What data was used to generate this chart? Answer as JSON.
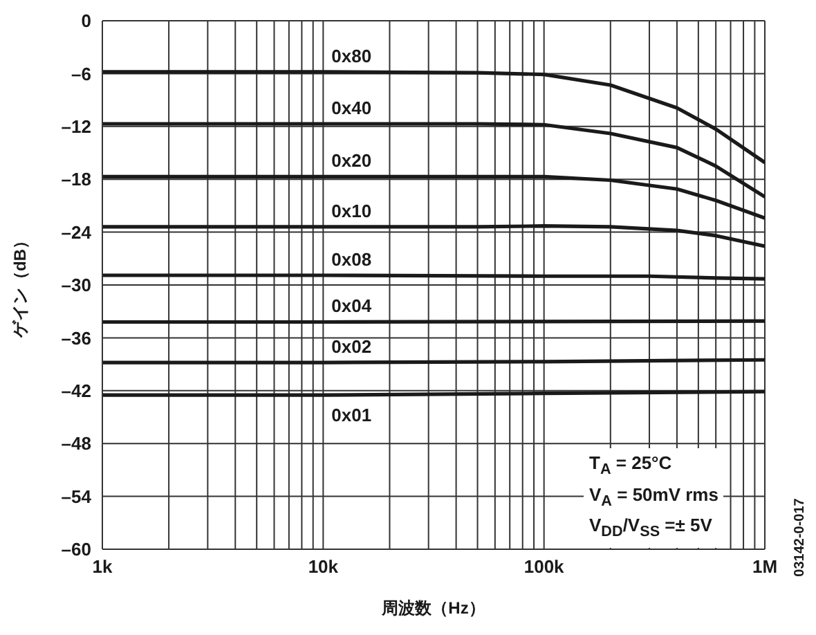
{
  "chart_data": {
    "type": "line",
    "xlabel": "周波数（Hz）",
    "ylabel": "ゲイン（dB）",
    "log": "x",
    "grid": true,
    "line_style": "solid",
    "xlim": [
      1000,
      1000000
    ],
    "xticks": [
      {
        "value": 1000,
        "label": "1k"
      },
      {
        "value": 2000,
        "label": null
      },
      {
        "value": 3000,
        "label": null
      },
      {
        "value": 4000,
        "label": null
      },
      {
        "value": 5000,
        "label": null
      },
      {
        "value": 6000,
        "label": null
      },
      {
        "value": 7000,
        "label": null
      },
      {
        "value": 8000,
        "label": null
      },
      {
        "value": 9000,
        "label": null
      },
      {
        "value": 10000,
        "label": "10k"
      },
      {
        "value": 20000,
        "label": null
      },
      {
        "value": 30000,
        "label": null
      },
      {
        "value": 40000,
        "label": null
      },
      {
        "value": 50000,
        "label": null
      },
      {
        "value": 60000,
        "label": null
      },
      {
        "value": 70000,
        "label": null
      },
      {
        "value": 80000,
        "label": null
      },
      {
        "value": 90000,
        "label": null
      },
      {
        "value": 100000,
        "label": "100k"
      },
      {
        "value": 200000,
        "label": null
      },
      {
        "value": 300000,
        "label": null
      },
      {
        "value": 400000,
        "label": null
      },
      {
        "value": 500000,
        "label": null
      },
      {
        "value": 600000,
        "label": null
      },
      {
        "value": 700000,
        "label": null
      },
      {
        "value": 800000,
        "label": null
      },
      {
        "value": 900000,
        "label": null
      },
      {
        "value": 1000000,
        "label": "1M"
      }
    ],
    "ylim": [
      -60,
      0
    ],
    "yticks": [
      {
        "value": -60,
        "label": "–60"
      },
      {
        "value": -54,
        "label": "–54"
      },
      {
        "value": -48,
        "label": "–48"
      },
      {
        "value": -42,
        "label": "–42"
      },
      {
        "value": -36,
        "label": "–36"
      },
      {
        "value": -30,
        "label": "–30"
      },
      {
        "value": -24,
        "label": "–24"
      },
      {
        "value": -18,
        "label": "–18"
      },
      {
        "value": -12,
        "label": "–12"
      },
      {
        "value": -6,
        "label": "–6"
      },
      0
    ],
    "series": [
      {
        "name": "0x80",
        "color": "#1a1a1a",
        "x": [
          1000,
          10000,
          50000,
          100000,
          200000,
          400000,
          600000,
          1000000
        ],
        "values": [
          -5.8,
          -5.8,
          -5.9,
          -6.1,
          -7.3,
          -9.9,
          -12.3,
          -16.1
        ]
      },
      {
        "name": "0x40",
        "color": "#1a1a1a",
        "x": [
          1000,
          10000,
          50000,
          100000,
          200000,
          400000,
          600000,
          1000000
        ],
        "values": [
          -11.7,
          -11.7,
          -11.7,
          -11.8,
          -12.8,
          -14.4,
          -16.5,
          -20.0
        ]
      },
      {
        "name": "0x20",
        "color": "#1a1a1a",
        "x": [
          1000,
          10000,
          50000,
          100000,
          200000,
          400000,
          600000,
          1000000
        ],
        "values": [
          -17.7,
          -17.7,
          -17.7,
          -17.7,
          -18.1,
          -19.1,
          -20.4,
          -22.4
        ]
      },
      {
        "name": "0x10",
        "color": "#1a1a1a",
        "x": [
          1000,
          10000,
          50000,
          100000,
          200000,
          400000,
          600000,
          1000000
        ],
        "values": [
          -23.4,
          -23.4,
          -23.4,
          -23.3,
          -23.4,
          -23.8,
          -24.4,
          -25.6
        ]
      },
      {
        "name": "0x08",
        "color": "#1a1a1a",
        "x": [
          1000,
          10000,
          100000,
          300000,
          600000,
          1000000
        ],
        "values": [
          -28.9,
          -28.9,
          -29.0,
          -29.0,
          -29.2,
          -29.3
        ]
      },
      {
        "name": "0x04",
        "color": "#1a1a1a",
        "x": [
          1000,
          10000,
          1000000
        ],
        "values": [
          -34.2,
          -34.2,
          -34.1
        ]
      },
      {
        "name": "0x02",
        "color": "#1a1a1a",
        "x": [
          1000,
          10000,
          100000,
          1000000
        ],
        "values": [
          -38.8,
          -38.8,
          -38.7,
          -38.5
        ]
      },
      {
        "name": "0x01",
        "color": "#1a1a1a",
        "x": [
          1000,
          10000,
          100000,
          1000000
        ],
        "values": [
          -42.5,
          -42.5,
          -42.3,
          -42.1
        ]
      }
    ],
    "annotations": [
      "T$_{A}$ = 25°C",
      "V$_{A}$ = 50mV rms",
      "V$_{DD}$/V$_{SS}$ =± 5V",
      "03142-0-017"
    ]
  }
}
